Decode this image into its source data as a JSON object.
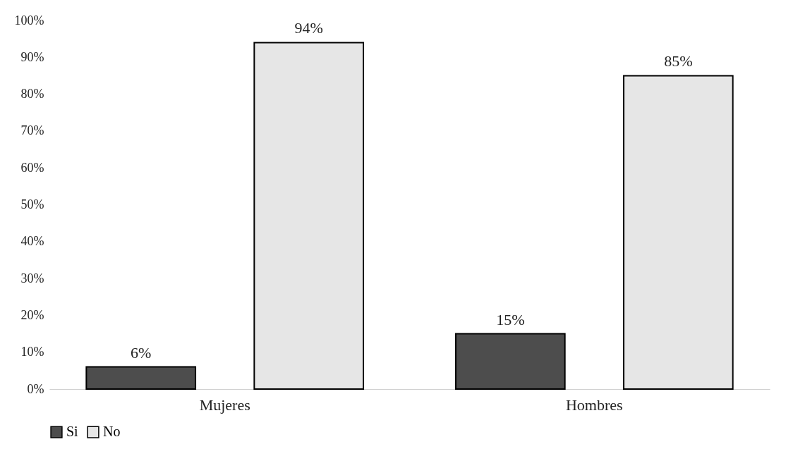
{
  "chart_data": {
    "type": "bar",
    "categories": [
      "Mujeres",
      "Hombres"
    ],
    "series": [
      {
        "name": "Si",
        "color": "#4d4d4d",
        "values": [
          6,
          15
        ],
        "value_labels": [
          "6%",
          "15%"
        ]
      },
      {
        "name": "No",
        "color": "#e6e6e6",
        "values": [
          94,
          85
        ],
        "value_labels": [
          "94%",
          "85%"
        ]
      }
    ],
    "ylim": [
      0,
      100
    ],
    "yticks": [
      {
        "value": 0,
        "label": "0%"
      },
      {
        "value": 10,
        "label": "10%"
      },
      {
        "value": 20,
        "label": "20%"
      },
      {
        "value": 30,
        "label": "30%"
      },
      {
        "value": 40,
        "label": "40%"
      },
      {
        "value": 50,
        "label": "50%"
      },
      {
        "value": 60,
        "label": "60%"
      },
      {
        "value": 70,
        "label": "70%"
      },
      {
        "value": 80,
        "label": "80%"
      },
      {
        "value": 90,
        "label": "90%"
      },
      {
        "value": 100,
        "label": "100%"
      }
    ],
    "grid": false,
    "legend": "bottom"
  }
}
